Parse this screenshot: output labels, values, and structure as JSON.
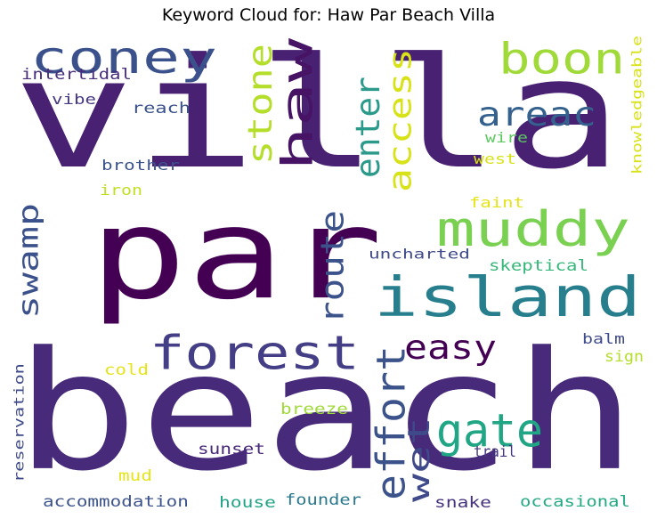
{
  "chart_data": {
    "type": "wordcloud",
    "title": "Keyword Cloud for: Haw Par Beach Villa",
    "colormap": "viridis",
    "background": "#ffffff",
    "words": [
      {
        "text": "villa",
        "weight": 100,
        "color": "#482173",
        "vertical": false
      },
      {
        "text": "par",
        "weight": 98,
        "color": "#440154",
        "vertical": false
      },
      {
        "text": "beach",
        "weight": 97,
        "color": "#472a7a",
        "vertical": false
      },
      {
        "text": "haw",
        "weight": 58,
        "color": "#471365",
        "vertical": true
      },
      {
        "text": "island",
        "weight": 52,
        "color": "#277f8e",
        "vertical": false
      },
      {
        "text": "coney",
        "weight": 46,
        "color": "#3b518b",
        "vertical": false
      },
      {
        "text": "forest",
        "weight": 45,
        "color": "#433e85",
        "vertical": false
      },
      {
        "text": "muddy",
        "weight": 44,
        "color": "#7ad151",
        "vertical": false
      },
      {
        "text": "boon",
        "weight": 43,
        "color": "#a0da39",
        "vertical": false
      },
      {
        "text": "effort",
        "weight": 36,
        "color": "#3b528b",
        "vertical": true
      },
      {
        "text": "gate",
        "weight": 35,
        "color": "#21a685",
        "vertical": false
      },
      {
        "text": "stone",
        "weight": 34,
        "color": "#b5de2b",
        "vertical": true
      },
      {
        "text": "enter",
        "weight": 33,
        "color": "#2c9a8b",
        "vertical": true
      },
      {
        "text": "access",
        "weight": 33,
        "color": "#d8e219",
        "vertical": true
      },
      {
        "text": "areac",
        "weight": 32,
        "color": "#34618d",
        "vertical": false
      },
      {
        "text": "route",
        "weight": 32,
        "color": "#3b528b",
        "vertical": true
      },
      {
        "text": "wet",
        "weight": 32,
        "color": "#3e4a89",
        "vertical": true
      },
      {
        "text": "swamp",
        "weight": 28,
        "color": "#3b518b",
        "vertical": true
      },
      {
        "text": "easy",
        "weight": 28,
        "color": "#440154",
        "vertical": false
      },
      {
        "text": "intertidal",
        "weight": 14,
        "color": "#472d7b",
        "vertical": false
      },
      {
        "text": "vibe",
        "weight": 14,
        "color": "#453882",
        "vertical": false
      },
      {
        "text": "reach",
        "weight": 14,
        "color": "#3b528b",
        "vertical": false
      },
      {
        "text": "brother",
        "weight": 14,
        "color": "#3b528b",
        "vertical": false
      },
      {
        "text": "iron",
        "weight": 14,
        "color": "#c2df23",
        "vertical": false
      },
      {
        "text": "wire",
        "weight": 14,
        "color": "#5ec962",
        "vertical": false
      },
      {
        "text": "west",
        "weight": 14,
        "color": "#d8e219",
        "vertical": false
      },
      {
        "text": "knowledgeable",
        "weight": 14,
        "color": "#d8e219",
        "vertical": true
      },
      {
        "text": "faint",
        "weight": 14,
        "color": "#e5e419",
        "vertical": false
      },
      {
        "text": "uncharted",
        "weight": 14,
        "color": "#3e4a89",
        "vertical": false
      },
      {
        "text": "skeptical",
        "weight": 14,
        "color": "#35b779",
        "vertical": false
      },
      {
        "text": "balm",
        "weight": 14,
        "color": "#3e4a89",
        "vertical": false
      },
      {
        "text": "sign",
        "weight": 14,
        "color": "#b5de2b",
        "vertical": false
      },
      {
        "text": "cold",
        "weight": 14,
        "color": "#e5e419",
        "vertical": false
      },
      {
        "text": "breeze",
        "weight": 14,
        "color": "#a0da39",
        "vertical": false
      },
      {
        "text": "reservation",
        "weight": 14,
        "color": "#3e4a89",
        "vertical": true
      },
      {
        "text": "sunset",
        "weight": 14,
        "color": "#482878",
        "vertical": false
      },
      {
        "text": "trail",
        "weight": 14,
        "color": "#453882",
        "vertical": false
      },
      {
        "text": "mud",
        "weight": 14,
        "color": "#e5e419",
        "vertical": false
      },
      {
        "text": "accommodation",
        "weight": 14,
        "color": "#3b528b",
        "vertical": false
      },
      {
        "text": "house",
        "weight": 14,
        "color": "#20a386",
        "vertical": false
      },
      {
        "text": "founder",
        "weight": 14,
        "color": "#2a788e",
        "vertical": false
      },
      {
        "text": "snake",
        "weight": 14,
        "color": "#46327e",
        "vertical": false
      },
      {
        "text": "occasional",
        "weight": 14,
        "color": "#23a983",
        "vertical": false
      }
    ]
  }
}
